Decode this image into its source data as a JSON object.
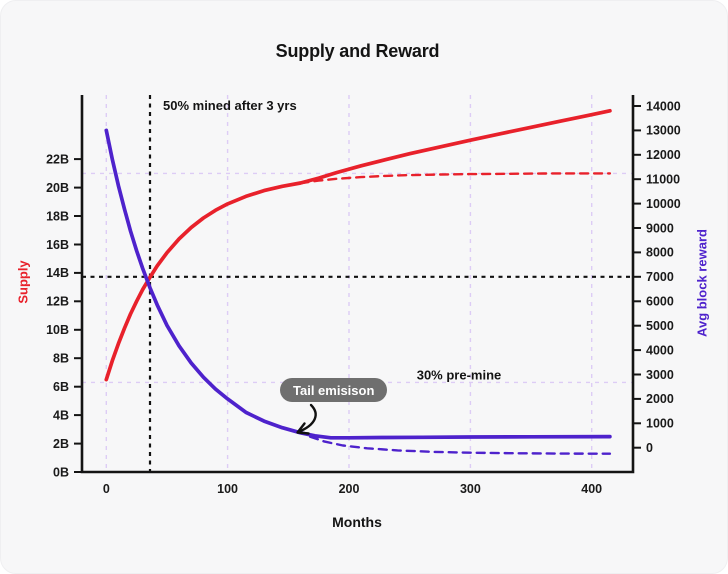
{
  "title": "Supply and Reward",
  "colors": {
    "supply": "#e8212b",
    "reward": "#4e22cc",
    "grid": "#ddccf5",
    "axis": "#141414",
    "reference": "#111111",
    "badge_bg": "#6f6f6f",
    "badge_text": "#ffffff",
    "card_bg": "#f7f7f8"
  },
  "chart_data": {
    "type": "line",
    "title": "Supply and Reward",
    "xlabel": "Months",
    "ylabel_left": "Supply",
    "ylabel_right": "Avg block reward",
    "legend": "none",
    "xlim": [
      -20,
      434
    ],
    "ylim_left": [
      0,
      26.51
    ],
    "ylim_right": [
      -995,
      14450
    ],
    "x_ticks": [
      0,
      100,
      200,
      300,
      400
    ],
    "x_tick_labels": [
      "0",
      "100",
      "200",
      "300",
      "400"
    ],
    "left_ticks": [
      0,
      2,
      4,
      6,
      8,
      10,
      12,
      14,
      16,
      18,
      20,
      22
    ],
    "left_tick_labels": [
      "0B",
      "2B",
      "4B",
      "6B",
      "8B",
      "10B",
      "12B",
      "14B",
      "16B",
      "18B",
      "20B",
      "22B"
    ],
    "right_ticks": [
      0,
      1000,
      2000,
      3000,
      4000,
      5000,
      6000,
      7000,
      8000,
      9000,
      10000,
      11000,
      12000,
      13000,
      14000
    ],
    "right_tick_labels": [
      "0",
      "1000",
      "2000",
      "3000",
      "4000",
      "5000",
      "6000",
      "7000",
      "8000",
      "9000",
      "10000",
      "11000",
      "12000",
      "13000",
      "14000"
    ],
    "grid": {
      "vertical_months": [
        0,
        100,
        200,
        300,
        400
      ],
      "horizontal_left_values": [
        6.3,
        21
      ]
    },
    "reference_lines": {
      "vertical_month": 36,
      "horizontal_right_value": 7000
    },
    "series": [
      {
        "id": "supply-capped-dashed",
        "axis": "left",
        "line": "dashed",
        "color": "supply",
        "points": [
          [
            160,
            20.31
          ],
          [
            175,
            20.49
          ],
          [
            190,
            20.62
          ],
          [
            210,
            20.74
          ],
          [
            230,
            20.82
          ],
          [
            250,
            20.88
          ],
          [
            275,
            20.92
          ],
          [
            300,
            20.95
          ],
          [
            330,
            20.97
          ],
          [
            360,
            20.99
          ],
          [
            390,
            21.0
          ],
          [
            415,
            21.0
          ]
        ]
      },
      {
        "id": "reward-capped-dashed",
        "axis": "right",
        "line": "dashed",
        "color": "reward",
        "points": [
          [
            168,
            450
          ],
          [
            180,
            250
          ],
          [
            195,
            90
          ],
          [
            215,
            -25
          ],
          [
            240,
            -110
          ],
          [
            270,
            -170
          ],
          [
            300,
            -205
          ],
          [
            340,
            -228
          ],
          [
            380,
            -240
          ],
          [
            415,
            -246
          ]
        ]
      },
      {
        "id": "supply-tail-emission",
        "axis": "left",
        "line": "solid",
        "color": "supply",
        "points": [
          [
            0,
            6.5
          ],
          [
            5,
            7.82
          ],
          [
            10,
            9.02
          ],
          [
            15,
            10.11
          ],
          [
            20,
            11.11
          ],
          [
            25,
            12.0
          ],
          [
            30,
            12.83
          ],
          [
            36,
            13.7
          ],
          [
            42,
            14.49
          ],
          [
            50,
            15.42
          ],
          [
            60,
            16.39
          ],
          [
            70,
            17.19
          ],
          [
            80,
            17.86
          ],
          [
            90,
            18.4
          ],
          [
            100,
            18.85
          ],
          [
            115,
            19.38
          ],
          [
            130,
            19.79
          ],
          [
            145,
            20.09
          ],
          [
            160,
            20.32
          ],
          [
            175,
            20.67
          ],
          [
            190,
            21.06
          ],
          [
            210,
            21.53
          ],
          [
            230,
            21.96
          ],
          [
            250,
            22.38
          ],
          [
            275,
            22.86
          ],
          [
            300,
            23.33
          ],
          [
            325,
            23.79
          ],
          [
            350,
            24.24
          ],
          [
            375,
            24.69
          ],
          [
            395,
            25.04
          ],
          [
            415,
            25.4
          ]
        ]
      },
      {
        "id": "reward-tail-emission",
        "axis": "right",
        "line": "solid",
        "color": "reward",
        "points": [
          [
            0,
            13000
          ],
          [
            5,
            11820
          ],
          [
            10,
            10740
          ],
          [
            15,
            9770
          ],
          [
            20,
            8880
          ],
          [
            25,
            8070
          ],
          [
            30,
            7340
          ],
          [
            36,
            6550
          ],
          [
            42,
            5850
          ],
          [
            50,
            5010
          ],
          [
            60,
            4170
          ],
          [
            70,
            3470
          ],
          [
            80,
            2890
          ],
          [
            90,
            2400
          ],
          [
            100,
            2000
          ],
          [
            115,
            1450
          ],
          [
            130,
            1090
          ],
          [
            145,
            820
          ],
          [
            160,
            610
          ],
          [
            172,
            490
          ],
          [
            185,
            405
          ],
          [
            200,
            405
          ],
          [
            230,
            418
          ],
          [
            260,
            428
          ],
          [
            300,
            438
          ],
          [
            350,
            447
          ],
          [
            415,
            455
          ]
        ]
      }
    ],
    "annotations": {
      "halfway": {
        "text": "50% mined after 3 yrs"
      },
      "premine": {
        "text": "30% pre-mine"
      },
      "tail_badge": {
        "text": "Tail emisison"
      }
    }
  }
}
